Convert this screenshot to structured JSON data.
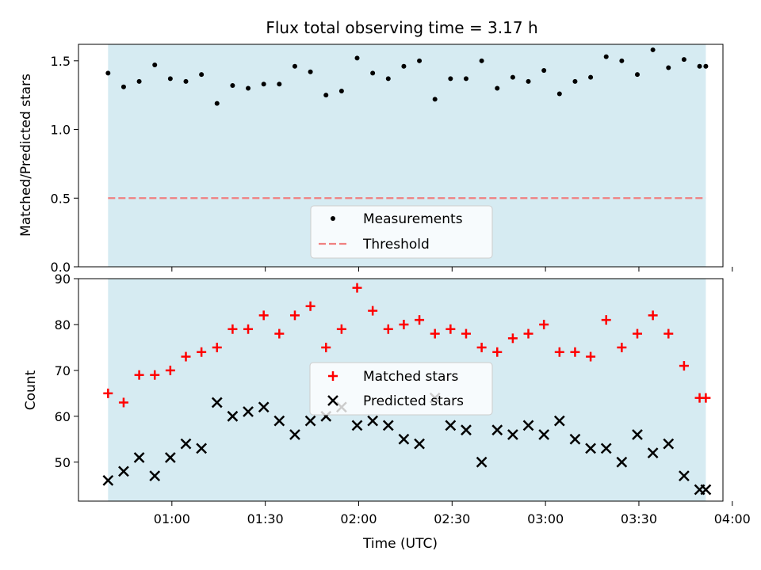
{
  "title": "Flux total observing time = 3.17 h",
  "colors": {
    "span": "#add8e6",
    "measurement": "#000000",
    "threshold": "#f08080",
    "matched": "#ff0000",
    "predicted": "#000000"
  },
  "chart_data": [
    {
      "type": "scatter",
      "panel": "top",
      "ylabel": "Matched/Predicted stars",
      "ylim": [
        0,
        1.62
      ],
      "yticks": [
        0.0,
        0.5,
        1.0,
        1.5
      ],
      "ytick_labels": [
        "0.0",
        "0.5",
        "1.0",
        "1.5"
      ],
      "x_unit": "minutes after 00:00 UTC",
      "xlim": [
        30,
        237
      ],
      "shaded_span": [
        39.5,
        231.5
      ],
      "threshold": 0.5,
      "legend": {
        "position": "lower-center",
        "entries": [
          "Measurements",
          "Threshold"
        ]
      },
      "series": [
        {
          "name": "Measurements",
          "marker": "dot",
          "x": [
            39.5,
            44.5,
            49.5,
            54.5,
            59.5,
            64.5,
            69.5,
            74.5,
            79.5,
            84.5,
            89.5,
            94.5,
            99.5,
            104.5,
            109.5,
            114.5,
            119.5,
            124.5,
            129.5,
            134.5,
            139.5,
            144.5,
            149.5,
            154.5,
            159.5,
            164.5,
            169.5,
            174.5,
            179.5,
            184.5,
            189.5,
            194.5,
            199.5,
            204.5,
            209.5,
            214.5,
            219.5,
            224.5,
            229.5,
            231.5
          ],
          "y": [
            1.41,
            1.31,
            1.35,
            1.47,
            1.37,
            1.35,
            1.4,
            1.19,
            1.32,
            1.3,
            1.33,
            1.33,
            1.46,
            1.42,
            1.25,
            1.28,
            1.52,
            1.41,
            1.37,
            1.46,
            1.5,
            1.22,
            1.37,
            1.37,
            1.5,
            1.3,
            1.38,
            1.35,
            1.43,
            1.26,
            1.35,
            1.38,
            1.53,
            1.5,
            1.4,
            1.58,
            1.45,
            1.51,
            1.46,
            1.46
          ]
        }
      ]
    },
    {
      "type": "scatter",
      "panel": "bottom",
      "xlabel": "Time (UTC)",
      "ylabel": "Count",
      "ylim": [
        41.5,
        90
      ],
      "yticks": [
        50,
        60,
        70,
        80,
        90
      ],
      "ytick_labels": [
        "50",
        "60",
        "70",
        "80",
        "90"
      ],
      "x_unit": "minutes after 00:00 UTC",
      "xlim": [
        30,
        237
      ],
      "xticks": [
        60,
        90,
        120,
        150,
        180,
        210,
        240
      ],
      "xtick_labels": [
        "01:00",
        "01:30",
        "02:00",
        "02:30",
        "03:00",
        "03:30",
        "04:00"
      ],
      "shaded_span": [
        39.5,
        231.5
      ],
      "legend": {
        "position": "center",
        "entries": [
          "Matched stars",
          "Predicted stars"
        ]
      },
      "series": [
        {
          "name": "Matched stars",
          "marker": "plus",
          "x": [
            39.5,
            44.5,
            49.5,
            54.5,
            59.5,
            64.5,
            69.5,
            74.5,
            79.5,
            84.5,
            89.5,
            94.5,
            99.5,
            104.5,
            109.5,
            114.5,
            119.5,
            124.5,
            129.5,
            134.5,
            139.5,
            144.5,
            149.5,
            154.5,
            159.5,
            164.5,
            169.5,
            174.5,
            179.5,
            184.5,
            189.5,
            194.5,
            199.5,
            204.5,
            209.5,
            214.5,
            219.5,
            224.5,
            229.5,
            231.5
          ],
          "y": [
            65,
            63,
            69,
            69,
            70,
            73,
            74,
            75,
            79,
            79,
            82,
            78,
            82,
            84,
            75,
            79,
            88,
            83,
            79,
            80,
            81,
            78,
            79,
            78,
            75,
            74,
            77,
            78,
            80,
            74,
            74,
            73,
            81,
            75,
            78,
            82,
            78,
            71,
            64,
            64
          ]
        },
        {
          "name": "Predicted stars",
          "marker": "x",
          "x": [
            39.5,
            44.5,
            49.5,
            54.5,
            59.5,
            64.5,
            69.5,
            74.5,
            79.5,
            84.5,
            89.5,
            94.5,
            99.5,
            104.5,
            109.5,
            114.5,
            119.5,
            124.5,
            129.5,
            134.5,
            139.5,
            144.5,
            149.5,
            154.5,
            159.5,
            164.5,
            169.5,
            174.5,
            179.5,
            184.5,
            189.5,
            194.5,
            199.5,
            204.5,
            209.5,
            214.5,
            219.5,
            224.5,
            229.5,
            231.5
          ],
          "y": [
            46,
            48,
            51,
            47,
            51,
            54,
            53,
            63,
            60,
            61,
            62,
            59,
            56,
            59,
            60,
            62,
            58,
            59,
            58,
            55,
            54,
            64,
            58,
            57,
            50,
            57,
            56,
            58,
            56,
            59,
            55,
            53,
            53,
            50,
            56,
            52,
            54,
            47,
            44,
            44
          ]
        }
      ]
    }
  ]
}
